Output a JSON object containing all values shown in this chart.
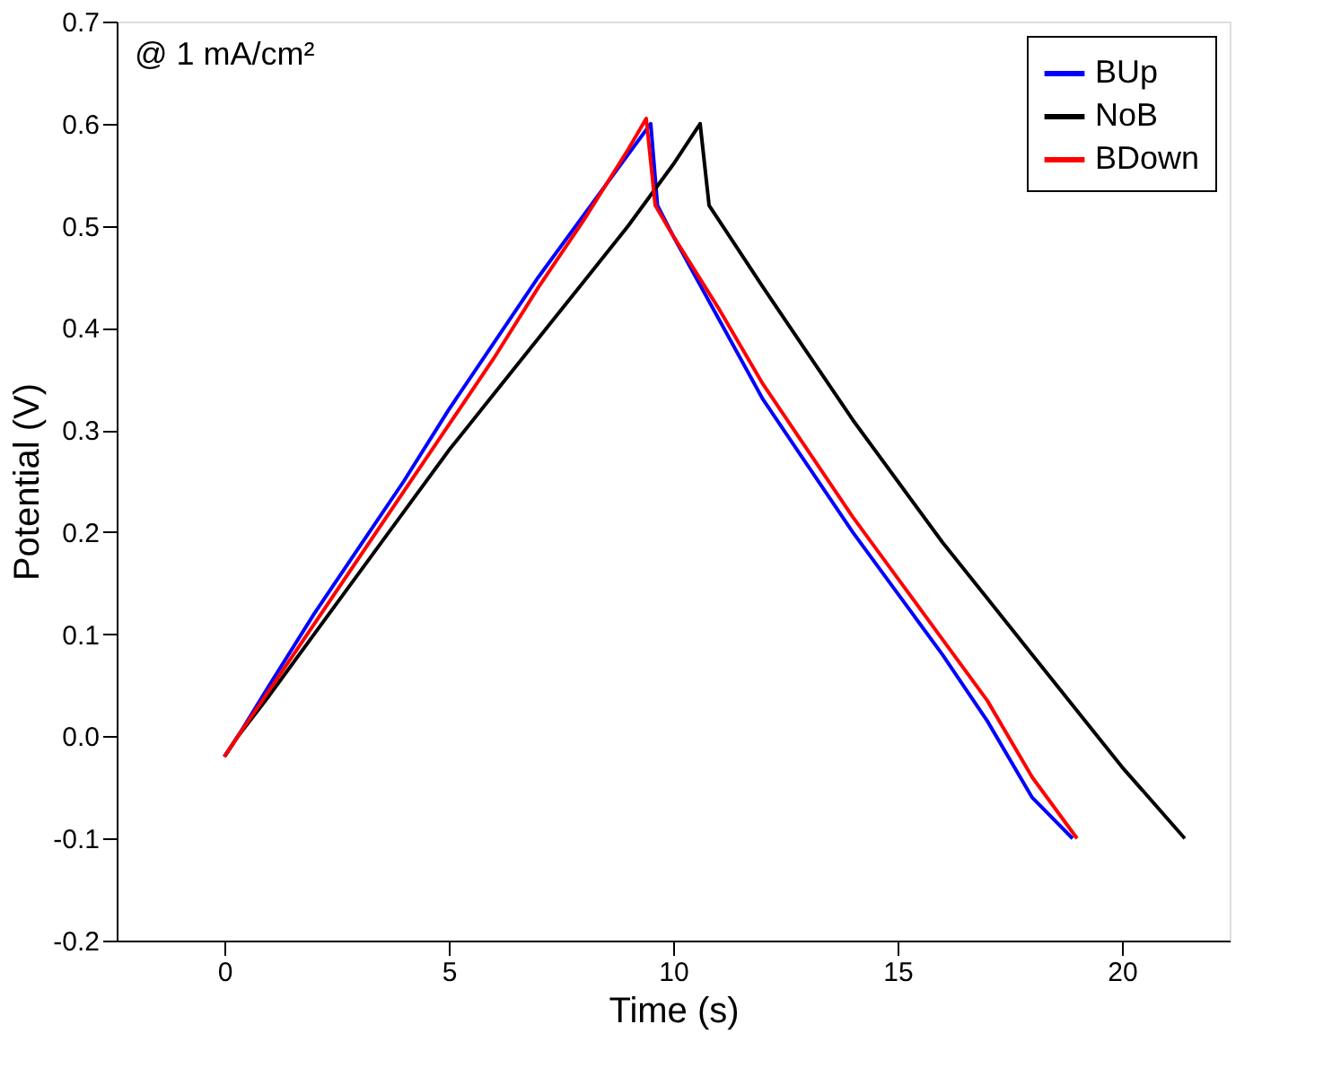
{
  "chart_data": {
    "type": "line",
    "xlabel": "Time (s)",
    "ylabel": "Potential (V)",
    "annotations": [
      "@ 1 mA/cm²"
    ],
    "xlim": [
      -2.4,
      22.4
    ],
    "xticks": [
      0,
      5,
      10,
      15,
      20
    ],
    "ylim": [
      -0.2,
      0.7
    ],
    "yticks": [
      -0.2,
      -0.1,
      {
        "value": 0,
        "label": "0.0"
      },
      0.1,
      0.2,
      0.3,
      0.4,
      0.5,
      0.6,
      0.7
    ],
    "grid": false,
    "legend": "top right",
    "line_style": "solid",
    "marker": "none",
    "series": [
      {
        "name": "BUp",
        "color": "#0000ff",
        "x": [
          0,
          0.3,
          1,
          2,
          3,
          4,
          5,
          6,
          7,
          8,
          9,
          9.5,
          9.65,
          10,
          11,
          12,
          13,
          14,
          15,
          16,
          17,
          18,
          18.9
        ],
        "values": [
          -0.02,
          0.0,
          0.05,
          0.12,
          0.185,
          0.25,
          0.32,
          0.385,
          0.45,
          0.51,
          0.57,
          0.6,
          0.52,
          0.49,
          0.41,
          0.33,
          0.265,
          0.2,
          0.14,
          0.08,
          0.015,
          -0.06,
          -0.1
        ]
      },
      {
        "name": "NoB",
        "color": "#000000",
        "x": [
          0,
          0.3,
          1,
          2,
          3,
          4,
          5,
          6,
          7,
          8,
          9,
          10,
          10.6,
          10.8,
          12,
          13,
          14,
          15,
          16,
          17,
          18,
          19,
          20,
          21,
          21.4
        ],
        "values": [
          -0.02,
          0.0,
          0.04,
          0.1,
          0.16,
          0.22,
          0.28,
          0.335,
          0.39,
          0.445,
          0.5,
          0.56,
          0.6,
          0.52,
          0.44,
          0.375,
          0.31,
          0.25,
          0.19,
          0.135,
          0.08,
          0.025,
          -0.03,
          -0.08,
          -0.1
        ]
      },
      {
        "name": "BDown",
        "color": "#ff0000",
        "x": [
          0,
          0.3,
          1,
          2,
          3,
          4,
          5,
          6,
          7,
          8,
          9,
          9.4,
          9.6,
          10,
          11,
          12,
          13,
          14,
          15,
          16,
          17,
          18,
          19
        ],
        "values": [
          -0.02,
          0.0,
          0.045,
          0.11,
          0.175,
          0.24,
          0.305,
          0.37,
          0.44,
          0.505,
          0.575,
          0.605,
          0.52,
          0.49,
          0.42,
          0.345,
          0.28,
          0.215,
          0.155,
          0.095,
          0.035,
          -0.04,
          -0.1
        ]
      }
    ]
  }
}
